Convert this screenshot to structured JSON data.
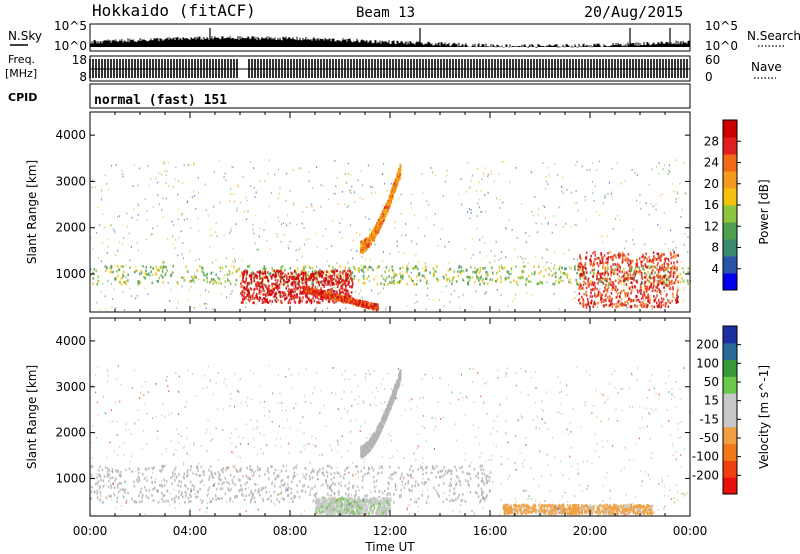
{
  "header": {
    "station": "Hokkaido (fitACF)",
    "beam": "Beam 13",
    "date": "20/Aug/2015"
  },
  "strips": {
    "noise": {
      "left_label": "N.Sky",
      "right_label": "N.Search",
      "left_ticks": [
        "10^5",
        "10^0"
      ],
      "right_ticks": [
        "10^5",
        "10^0"
      ]
    },
    "freq": {
      "left_label_1": "Freq.",
      "left_label_2": "[MHz]",
      "left_ticks": [
        "18",
        "8"
      ],
      "right_label": "Nave",
      "right_ticks": [
        "60",
        "0"
      ]
    },
    "cpid": {
      "left_label": "CPID",
      "mode_text": "normal (fast) 151"
    }
  },
  "colors": {
    "power_scale": [
      "#0000ee",
      "#2b55aa",
      "#3a8a72",
      "#4ea04e",
      "#8cc63f",
      "#f2c20e",
      "#f59a1e",
      "#f06a1a",
      "#e0201e",
      "#cc0000"
    ],
    "velocity_scale": [
      "#e8100c",
      "#f04010",
      "#f07818",
      "#f0a040",
      "#c8c8c8",
      "#c8c8c8",
      "#6cc84a",
      "#3a9a3a",
      "#2a6a9a",
      "#1a30a0"
    ],
    "ground_scatter": "#b4b4b4"
  },
  "chart_data": [
    {
      "type": "heatmap",
      "panel": "power",
      "ylabel": "Slant Range [km]",
      "y_ticks": [
        "1000",
        "2000",
        "3000",
        "4000"
      ],
      "ylim": [
        180,
        4500
      ],
      "xlim_hours": [
        0,
        24
      ],
      "colorbar": {
        "label": "Power [dB]",
        "ticks": [
          "4",
          "8",
          "12",
          "16",
          "20",
          "24",
          "28"
        ],
        "range": [
          0,
          32
        ]
      },
      "features": [
        {
          "name": "e-region band",
          "hours": [
            0,
            24
          ],
          "range_km": [
            800,
            1200
          ],
          "level": 14
        },
        {
          "name": "strong echo",
          "hours": [
            6.0,
            10.5
          ],
          "range_km": [
            400,
            1100
          ],
          "level": 30
        },
        {
          "name": "descending trace",
          "hours": [
            8.5,
            11.5
          ],
          "range_km": [
            300,
            700
          ],
          "level": 26
        },
        {
          "name": "f-region arc",
          "hours": [
            10.8,
            12.4
          ],
          "range_km": [
            1600,
            3300
          ],
          "level": 22
        },
        {
          "name": "evening echo",
          "hours": [
            19.5,
            23.5
          ],
          "range_km": [
            300,
            1500
          ],
          "level": 27
        }
      ]
    },
    {
      "type": "heatmap",
      "panel": "velocity",
      "ylabel": "Slant Range [km]",
      "y_ticks": [
        "1000",
        "2000",
        "3000",
        "4000"
      ],
      "ylim": [
        180,
        4500
      ],
      "xlim_hours": [
        0,
        24
      ],
      "x_ticks": [
        "00:00",
        "04:00",
        "08:00",
        "12:00",
        "16:00",
        "20:00",
        "00:00"
      ],
      "xlabel": "Time UT",
      "colorbar": {
        "label": "Velocity [m s^-1]",
        "ticks": [
          "200",
          "100",
          "50",
          "15",
          "-15",
          "-50",
          "-100",
          "-200"
        ],
        "range": [
          -250,
          250
        ]
      },
      "features": [
        {
          "name": "ground scatter band",
          "hours": [
            0,
            16
          ],
          "range_km": [
            500,
            1300
          ],
          "level": 0
        },
        {
          "name": "green echo",
          "hours": [
            9.0,
            12.0
          ],
          "range_km": [
            250,
            600
          ],
          "level": 40
        },
        {
          "name": "orange echo",
          "hours": [
            16.5,
            22.5
          ],
          "range_km": [
            250,
            450
          ],
          "level": -60
        },
        {
          "name": "f-region arc",
          "hours": [
            10.8,
            12.4
          ],
          "range_km": [
            1600,
            3300
          ],
          "level": 0
        }
      ]
    }
  ]
}
